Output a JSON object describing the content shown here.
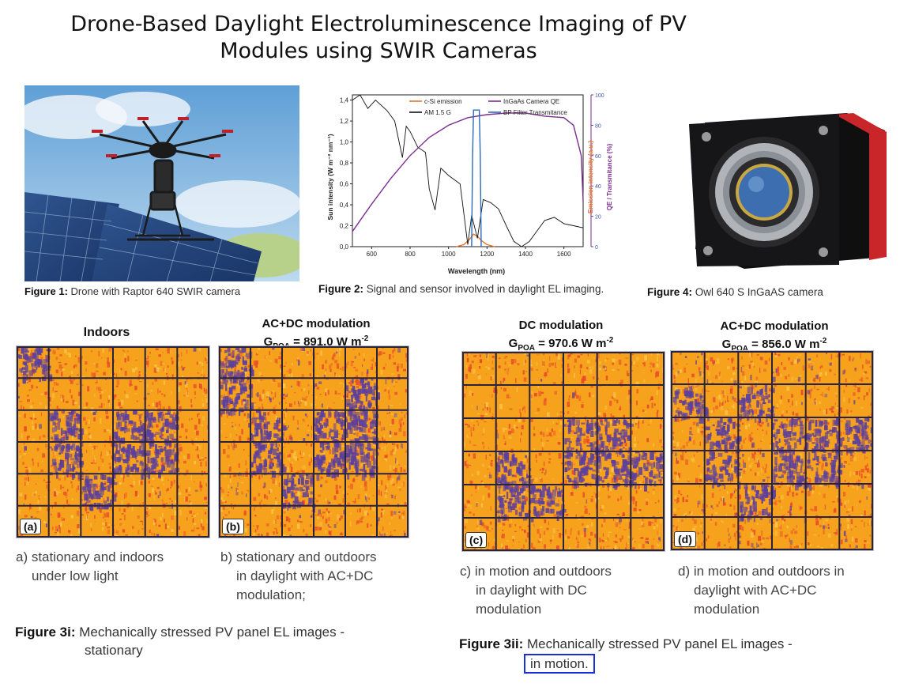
{
  "title": {
    "line1": "Drone-Based Daylight Electroluminescence Imaging of PV",
    "line2": "Modules using SWIR Cameras"
  },
  "figure1": {
    "label": "Figure 1:",
    "text": " Drone with Raptor 640 SWIR camera"
  },
  "figure2": {
    "label": "Figure 2:",
    "text": " Signal and sensor involved in daylight EL imaging.",
    "chart_data": {
      "type": "line",
      "xlabel": "Wavelength (nm)",
      "ylabel_left": "Sun intensity (W m⁻² nm⁻¹)",
      "ylabel_right_1": "Emission intensity (a.u.)",
      "ylabel_right_2": "QE / Transmitance (%)",
      "xlim": [
        500,
        1700
      ],
      "ylim": [
        0,
        1.45
      ],
      "ylim_right": [
        0,
        100
      ],
      "x_ticks": [
        "600",
        "800",
        "1000",
        "1200",
        "1400",
        "1600"
      ],
      "y_ticks": [
        "0,0",
        "0,2",
        "0,4",
        "0,6",
        "0,8",
        "1,0",
        "1,2",
        "1,4"
      ],
      "y_right_ticks": [
        "0",
        "20",
        "40",
        "60",
        "80",
        "100"
      ],
      "series": [
        {
          "name": "c-Si emission",
          "color": "#e8742a",
          "x": [
            1040,
            1080,
            1110,
            1130,
            1150,
            1170,
            1200,
            1240
          ],
          "y": [
            0.0,
            0.02,
            0.07,
            0.12,
            0.1,
            0.06,
            0.02,
            0.0
          ]
        },
        {
          "name": "AM 1.5 G",
          "color": "#111111",
          "x": [
            500,
            540,
            580,
            620,
            680,
            720,
            760,
            780,
            800,
            840,
            880,
            900,
            930,
            960,
            1000,
            1060,
            1100,
            1120,
            1150,
            1180,
            1220,
            1260,
            1300,
            1340,
            1380,
            1420,
            1500,
            1550,
            1600,
            1650,
            1700
          ],
          "y": [
            1.4,
            1.45,
            1.32,
            1.4,
            1.3,
            1.2,
            0.85,
            1.15,
            1.1,
            0.95,
            0.9,
            0.55,
            0.35,
            0.75,
            0.68,
            0.6,
            0.02,
            0.3,
            0.08,
            0.45,
            0.42,
            0.36,
            0.2,
            0.05,
            0.0,
            0.05,
            0.25,
            0.28,
            0.22,
            0.2,
            0.18
          ]
        },
        {
          "name": "InGaAs Camera QE",
          "color": "#7a2e8e",
          "x": [
            500,
            600,
            700,
            800,
            900,
            1000,
            1100,
            1200,
            1300,
            1400,
            1500,
            1600,
            1650,
            1690,
            1700
          ],
          "y": [
            10,
            28,
            45,
            60,
            72,
            80,
            85,
            87,
            88,
            88,
            86,
            85,
            80,
            60,
            30
          ]
        },
        {
          "name": "BP Filter Transmitance",
          "color": "#2d6ab8",
          "x": [
            1120,
            1125,
            1130,
            1160,
            1165,
            1170
          ],
          "y": [
            0,
            60,
            90,
            90,
            60,
            0
          ]
        }
      ]
    }
  },
  "figure4": {
    "label": "Figure 4:",
    "text": " Owl 640 S InGaAS camera"
  },
  "panels": {
    "a": {
      "heading": "Indoors",
      "tag": "(a)",
      "caption": [
        "a) stationary and indoors",
        "under low light"
      ]
    },
    "b": {
      "heading_line1": "AC+DC modulation",
      "heading_g": "G",
      "heading_sub": "POA",
      "heading_val": " = 891.0 W m",
      "heading_sup": "-2",
      "tag": "(b)",
      "caption": [
        "b) stationary and outdoors",
        "in daylight with AC+DC",
        "modulation;"
      ]
    },
    "c": {
      "heading_line1": "DC modulation",
      "heading_g": "G",
      "heading_sub": "POA",
      "heading_val": " = 970.6 W m",
      "heading_sup": "-2",
      "tag": "(c)",
      "caption": [
        "c) in motion and outdoors",
        "in daylight with DC",
        "modulation"
      ]
    },
    "d": {
      "heading_line1": "AC+DC modulation",
      "heading_g": "G",
      "heading_sub": "POA",
      "heading_val": " = 856.0 W m",
      "heading_sup": "-2",
      "tag": "(d)",
      "caption": [
        "d) in motion and outdoors in",
        "daylight with AC+DC",
        "modulation"
      ]
    }
  },
  "figure3i": {
    "label": "Figure 3i:",
    "text": " Mechanically stressed PV panel EL images -",
    "line2": "stationary"
  },
  "figure3ii": {
    "label": "Figure 3ii:",
    "text": " Mechanically stressed PV panel EL images -",
    "line2": "in motion."
  },
  "colors": {
    "el_bg": "#f6a21c",
    "el_hot": "#e8442a",
    "el_dark": "#5b3f9e",
    "grid": "#2a2340",
    "highlight": "#1a2fd6"
  }
}
